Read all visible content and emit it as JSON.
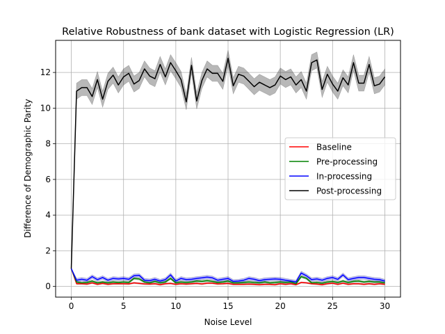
{
  "chart_data": {
    "type": "line",
    "title": "Relative Robustness of bank dataset with Logistic Regression (LR)",
    "xlabel": "Noise Level",
    "ylabel": "Difference of Demographic Parity",
    "xlim": [
      -1.5,
      31.5
    ],
    "ylim": [
      -0.6,
      13.8
    ],
    "xticks": [
      0,
      5,
      10,
      15,
      20,
      25,
      30
    ],
    "yticks": [
      0,
      2,
      4,
      6,
      8,
      10,
      12
    ],
    "grid": true,
    "legend_position": "center-right",
    "x": [
      0,
      0.5,
      1,
      1.5,
      2,
      2.5,
      3,
      3.5,
      4,
      4.5,
      5,
      5.5,
      6,
      6.5,
      7,
      7.5,
      8,
      8.5,
      9,
      9.5,
      10,
      10.5,
      11,
      11.5,
      12,
      12.5,
      13,
      13.5,
      14,
      14.5,
      15,
      15.5,
      16,
      16.5,
      17,
      17.5,
      18,
      18.5,
      19,
      19.5,
      20,
      20.5,
      21,
      21.5,
      22,
      22.5,
      23,
      23.5,
      24,
      24.5,
      25,
      25.5,
      26,
      26.5,
      27,
      27.5,
      28,
      28.5,
      29,
      29.5,
      30
    ],
    "series": [
      {
        "name": "Baseline",
        "color": "#ff0000",
        "values": [
          1.0,
          0.15,
          0.15,
          0.13,
          0.2,
          0.12,
          0.17,
          0.12,
          0.15,
          0.15,
          0.15,
          0.14,
          0.2,
          0.17,
          0.14,
          0.13,
          0.15,
          0.1,
          0.15,
          0.17,
          0.12,
          0.15,
          0.13,
          0.15,
          0.17,
          0.14,
          0.18,
          0.18,
          0.14,
          0.15,
          0.17,
          0.12,
          0.12,
          0.12,
          0.13,
          0.12,
          0.1,
          0.12,
          0.12,
          0.1,
          0.15,
          0.12,
          0.15,
          0.1,
          0.22,
          0.2,
          0.15,
          0.13,
          0.1,
          0.15,
          0.18,
          0.12,
          0.18,
          0.12,
          0.15,
          0.15,
          0.12,
          0.15,
          0.12,
          0.15,
          0.12
        ],
        "band": 0.04
      },
      {
        "name": "Pre-processing",
        "color": "#008000",
        "values": [
          1.0,
          0.25,
          0.2,
          0.22,
          0.3,
          0.2,
          0.25,
          0.2,
          0.25,
          0.22,
          0.25,
          0.22,
          0.45,
          0.42,
          0.25,
          0.2,
          0.28,
          0.2,
          0.25,
          0.45,
          0.2,
          0.25,
          0.22,
          0.25,
          0.3,
          0.28,
          0.32,
          0.28,
          0.22,
          0.25,
          0.3,
          0.2,
          0.2,
          0.22,
          0.25,
          0.22,
          0.2,
          0.25,
          0.2,
          0.22,
          0.25,
          0.22,
          0.25,
          0.15,
          0.55,
          0.45,
          0.2,
          0.22,
          0.18,
          0.25,
          0.28,
          0.22,
          0.3,
          0.22,
          0.28,
          0.3,
          0.25,
          0.28,
          0.25,
          0.25,
          0.2
        ],
        "band": 0.06
      },
      {
        "name": "In-processing",
        "color": "#0000ff",
        "values": [
          1.0,
          0.35,
          0.4,
          0.35,
          0.55,
          0.38,
          0.5,
          0.35,
          0.45,
          0.42,
          0.45,
          0.4,
          0.6,
          0.62,
          0.35,
          0.32,
          0.4,
          0.3,
          0.38,
          0.65,
          0.3,
          0.45,
          0.38,
          0.4,
          0.45,
          0.48,
          0.52,
          0.48,
          0.35,
          0.4,
          0.45,
          0.28,
          0.3,
          0.35,
          0.45,
          0.4,
          0.32,
          0.38,
          0.4,
          0.42,
          0.4,
          0.35,
          0.3,
          0.25,
          0.75,
          0.6,
          0.38,
          0.42,
          0.35,
          0.45,
          0.5,
          0.4,
          0.65,
          0.38,
          0.45,
          0.5,
          0.5,
          0.45,
          0.4,
          0.38,
          0.3
        ],
        "band": 0.1
      },
      {
        "name": "Post-processing",
        "color": "#000000",
        "values": [
          1.0,
          10.95,
          11.15,
          11.15,
          10.65,
          11.6,
          10.5,
          11.5,
          11.85,
          11.3,
          11.75,
          11.95,
          11.35,
          11.55,
          12.2,
          11.8,
          11.65,
          12.45,
          11.75,
          12.55,
          12.1,
          11.6,
          10.35,
          12.4,
          10.4,
          11.55,
          12.2,
          11.95,
          11.95,
          11.5,
          12.8,
          11.25,
          11.9,
          11.8,
          11.5,
          11.2,
          11.45,
          11.3,
          11.15,
          11.3,
          11.8,
          11.6,
          11.75,
          11.3,
          11.6,
          10.95,
          12.55,
          12.7,
          11.05,
          11.9,
          11.35,
          10.95,
          11.7,
          11.3,
          12.55,
          11.4,
          11.4,
          12.45,
          11.25,
          11.35,
          11.75
        ],
        "band": 0.45
      }
    ]
  }
}
